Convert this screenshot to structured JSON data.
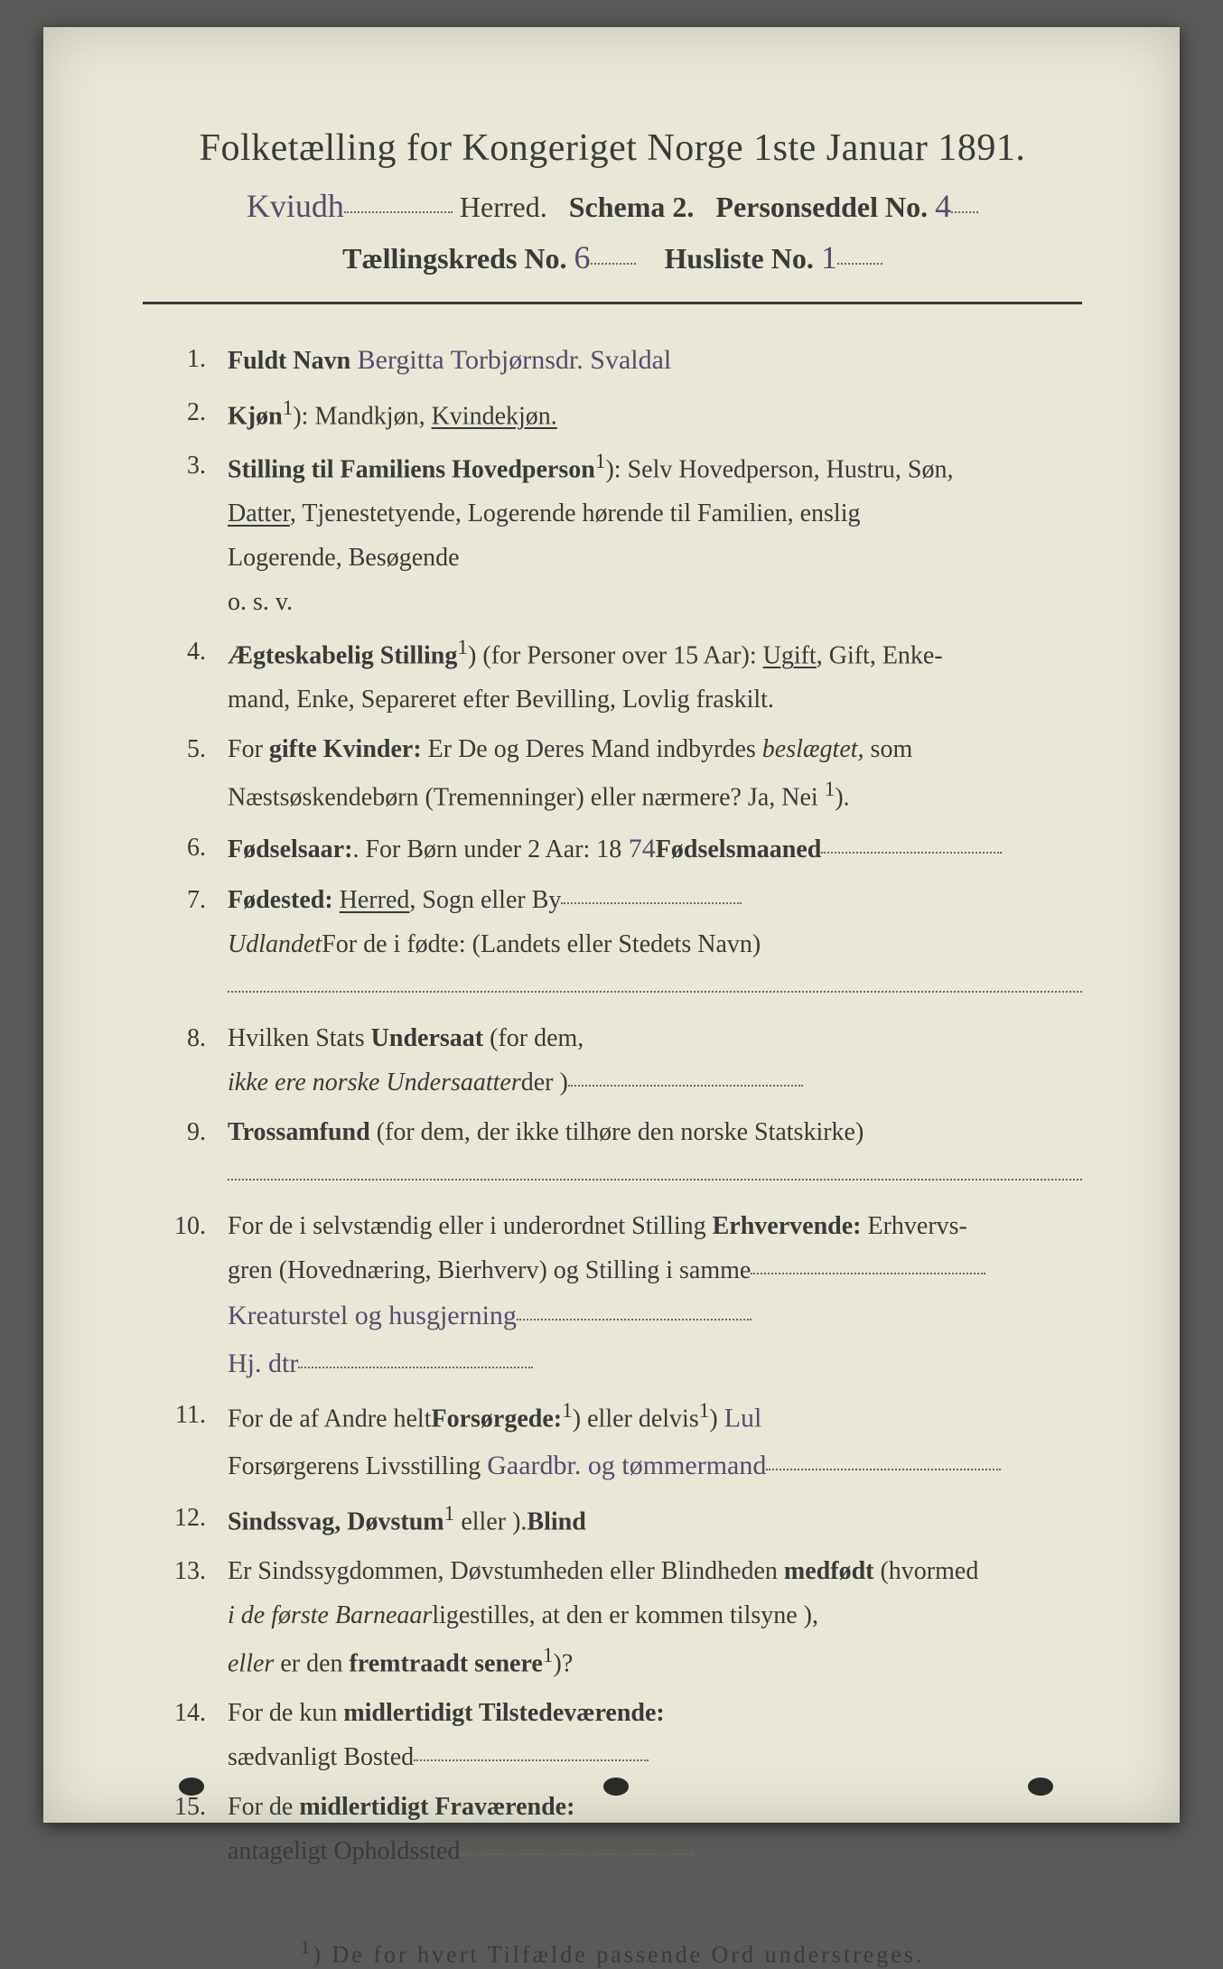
{
  "colors": {
    "page_bg": "#e8e7d8",
    "outer_bg": "#5a5a58",
    "print_ink": "#3a3a38",
    "handwriting": "#5a4a6a",
    "dotted": "#6a6a60"
  },
  "typography": {
    "title_fontsize_pt": 32,
    "body_fontsize_pt": 21,
    "handwriting_fontsize_pt": 27,
    "footnote_fontsize_pt": 20,
    "font_family_print": "serif",
    "font_family_handwriting": "cursive"
  },
  "header": {
    "title": "Folketælling for Kongeriget Norge 1ste Januar 1891.",
    "herred_hw": "Kviudh",
    "herred_label": "Herred.",
    "schema_label": "Schema 2.",
    "personseddel_label": "Personseddel No.",
    "personseddel_hw": "4",
    "kreds_label": "Tællingskreds No.",
    "kreds_hw": "6",
    "husliste_label": "Husliste No.",
    "husliste_hw": "1"
  },
  "items": [
    {
      "n": "1.",
      "label_bold": "Fuldt Navn",
      "hw": "Bergitta Torbjørnsdr. Svaldal"
    },
    {
      "n": "2.",
      "label_bold": "Kjøn",
      "sup": "1",
      "rest": "): Mandkjøn, ",
      "underlined": "Kvindekjøn.",
      "tail": ""
    },
    {
      "n": "3.",
      "label_bold": "Stilling til Familiens Hovedperson",
      "sup": "1",
      "rest": "): Selv Hovedperson, Hustru, Søn,",
      "lines": [
        {
          "underlined": "Datter",
          "tail": ", Tjenestetyende, Logerende hørende til Familien, enslig"
        },
        {
          "plain": "Logerende, Besøgende"
        },
        {
          "plain": "o. s. v."
        }
      ]
    },
    {
      "n": "4.",
      "label_bold": "Ægteskabelig Stilling",
      "sup": "1",
      "rest": ") (for Personer over 15 Aar): ",
      "underlined": "Ugift",
      "tail": ", Gift, Enke-",
      "lines": [
        {
          "plain": "mand, Enke, Separeret efter Bevilling, Lovlig fraskilt."
        }
      ]
    },
    {
      "n": "5.",
      "pre": "For ",
      "label_bold": "gifte Kvinder:",
      "rest": " Er De og Deres Mand indbyrdes ",
      "ital": "beslægtet,",
      "tail": " som",
      "lines": [
        {
          "plain": "Næstsøskendebørn (Tremenninger) eller nærmere?  Ja, Nei ",
          "sup": "1",
          "tail2": ")."
        }
      ]
    },
    {
      "n": "6.",
      "label_bold": "Fødselsaar:",
      "rest": " 18",
      "hw": "74",
      "mid": ".   For Børn under 2 Aar: ",
      "label_bold2": "Fødselsmaaned",
      "dotfill": true
    },
    {
      "n": "7.",
      "label_bold": "Fødested:",
      "rest": " ",
      "underlined": "Herred",
      "tail": ", Sogn eller By",
      "dotfill": true,
      "lines": [
        {
          "plain": "For de i ",
          "ital": "Udlandet",
          "tail2": " fødte: (Landets eller Stedets Navn)"
        },
        {
          "dotonly": true
        }
      ]
    },
    {
      "n": "8.",
      "pre": "Hvilken Stats ",
      "label_bold": "Undersaat",
      "rest": " (for dem,",
      "lines": [
        {
          "plain": "der ",
          "ital": "ikke ere norske Undersaatter",
          "tail2": ")",
          "dotfill": true
        }
      ]
    },
    {
      "n": "9.",
      "label_bold": "Trossamfund",
      "rest": " (for dem, der ikke tilhøre den norske Statskirke)",
      "lines": [
        {
          "dotonly": true
        }
      ]
    },
    {
      "n": "10.",
      "pre": "For de i selvstændig eller i underordnet Stilling ",
      "label_bold": "Erhvervende:",
      "rest": " Erhvervs-",
      "lines": [
        {
          "plain": "gren (Hovednæring, Bierhverv) og Stilling i samme",
          "dotfill": true
        },
        {
          "hw": "Kreaturstel og husgjerning",
          "dotfill": true
        },
        {
          "hw": "Hj. dtr",
          "dotfill": true
        }
      ]
    },
    {
      "n": "11.",
      "pre": "For de af Andre helt",
      "sup": "1",
      "mid": ") eller delvis",
      "sup2": "1",
      "rest": ") ",
      "label_bold": "Forsørgede:",
      "hw_inline": "   Lul",
      "lines": [
        {
          "plain": "Forsørgerens Livsstilling ",
          "hw": "Gaardbr. og tømmermand",
          "dotfill": true
        }
      ]
    },
    {
      "n": "12.",
      "label_bold": "Sindssvag, Døvstum",
      "rest": " eller ",
      "label_bold2": "Blind",
      "sup": "1",
      "tail": ")."
    },
    {
      "n": "13.",
      "pre": "Er Sindssygdommen, Døvstumheden eller Blindheden ",
      "label_bold": "medfødt",
      "rest": " (hvormed",
      "lines": [
        {
          "plain": "ligestilles, at den er kommen tilsyne ",
          "ital": "i de første Barneaar",
          "tail2": "),"
        },
        {
          "ital": "eller ",
          "plain2": "er den ",
          "bold2": "fremtraadt senere",
          "sup": "1",
          "tail2": ")?"
        }
      ]
    },
    {
      "n": "14.",
      "pre": "For de kun ",
      "label_bold": "midlertidigt Tilstedeværende:",
      "lines": [
        {
          "plain": "sædvanligt Bosted",
          "dotfill": true
        }
      ]
    },
    {
      "n": "15.",
      "pre": "For de ",
      "label_bold": "midlertidigt Fraværende:",
      "lines": [
        {
          "plain": "antageligt Opholdssted",
          "dotfill": true
        }
      ]
    }
  ],
  "footnote": {
    "sup": "1",
    "text": ") De for hvert Tilfælde passende Ord understreges."
  }
}
